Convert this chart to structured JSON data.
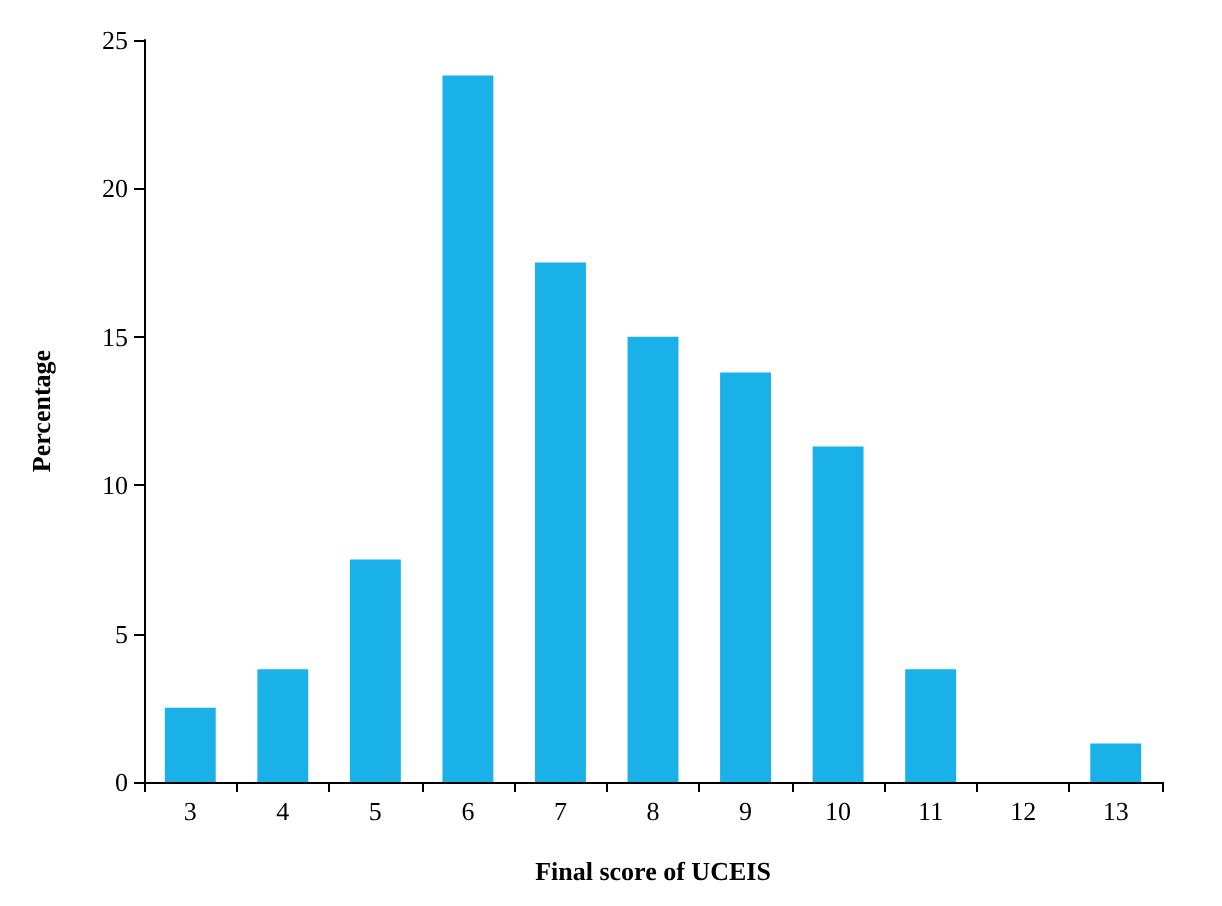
{
  "chart_data": {
    "type": "bar",
    "xlabel": "Final score of UCEIS",
    "ylabel": "Percentage",
    "categories": [
      "3",
      "4",
      "5",
      "6",
      "7",
      "8",
      "9",
      "10",
      "11",
      "12",
      "13"
    ],
    "values": [
      2.5,
      3.8,
      7.5,
      23.8,
      17.5,
      15,
      13.8,
      11.3,
      3.8,
      0,
      1.3
    ],
    "color": "#1ab0e8",
    "ylim": [
      0,
      25
    ],
    "yticks": [
      0,
      5,
      10,
      15,
      20,
      25
    ],
    "grid": false
  }
}
